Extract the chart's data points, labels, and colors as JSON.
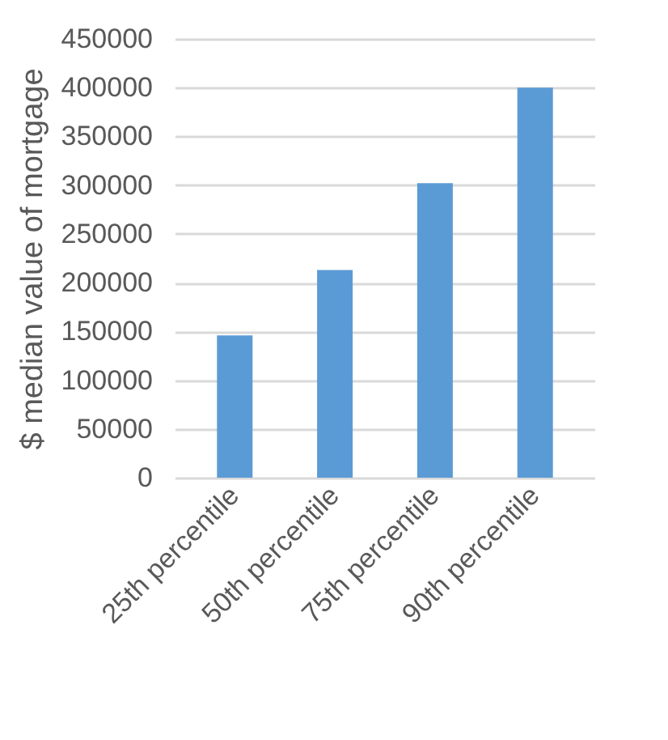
{
  "chart_data": {
    "type": "bar",
    "ylabel": "$ median value of mortgage",
    "categories": [
      "25th percentile",
      "50th percentile",
      "75th percentile",
      "90th percentile"
    ],
    "values": [
      146000,
      213000,
      302000,
      400000
    ],
    "color": "#5b9bd5",
    "ylim": [
      0,
      450000
    ],
    "yticks": [
      0,
      50000,
      100000,
      150000,
      200000,
      250000,
      300000,
      350000,
      400000,
      450000
    ],
    "grid": "y"
  }
}
